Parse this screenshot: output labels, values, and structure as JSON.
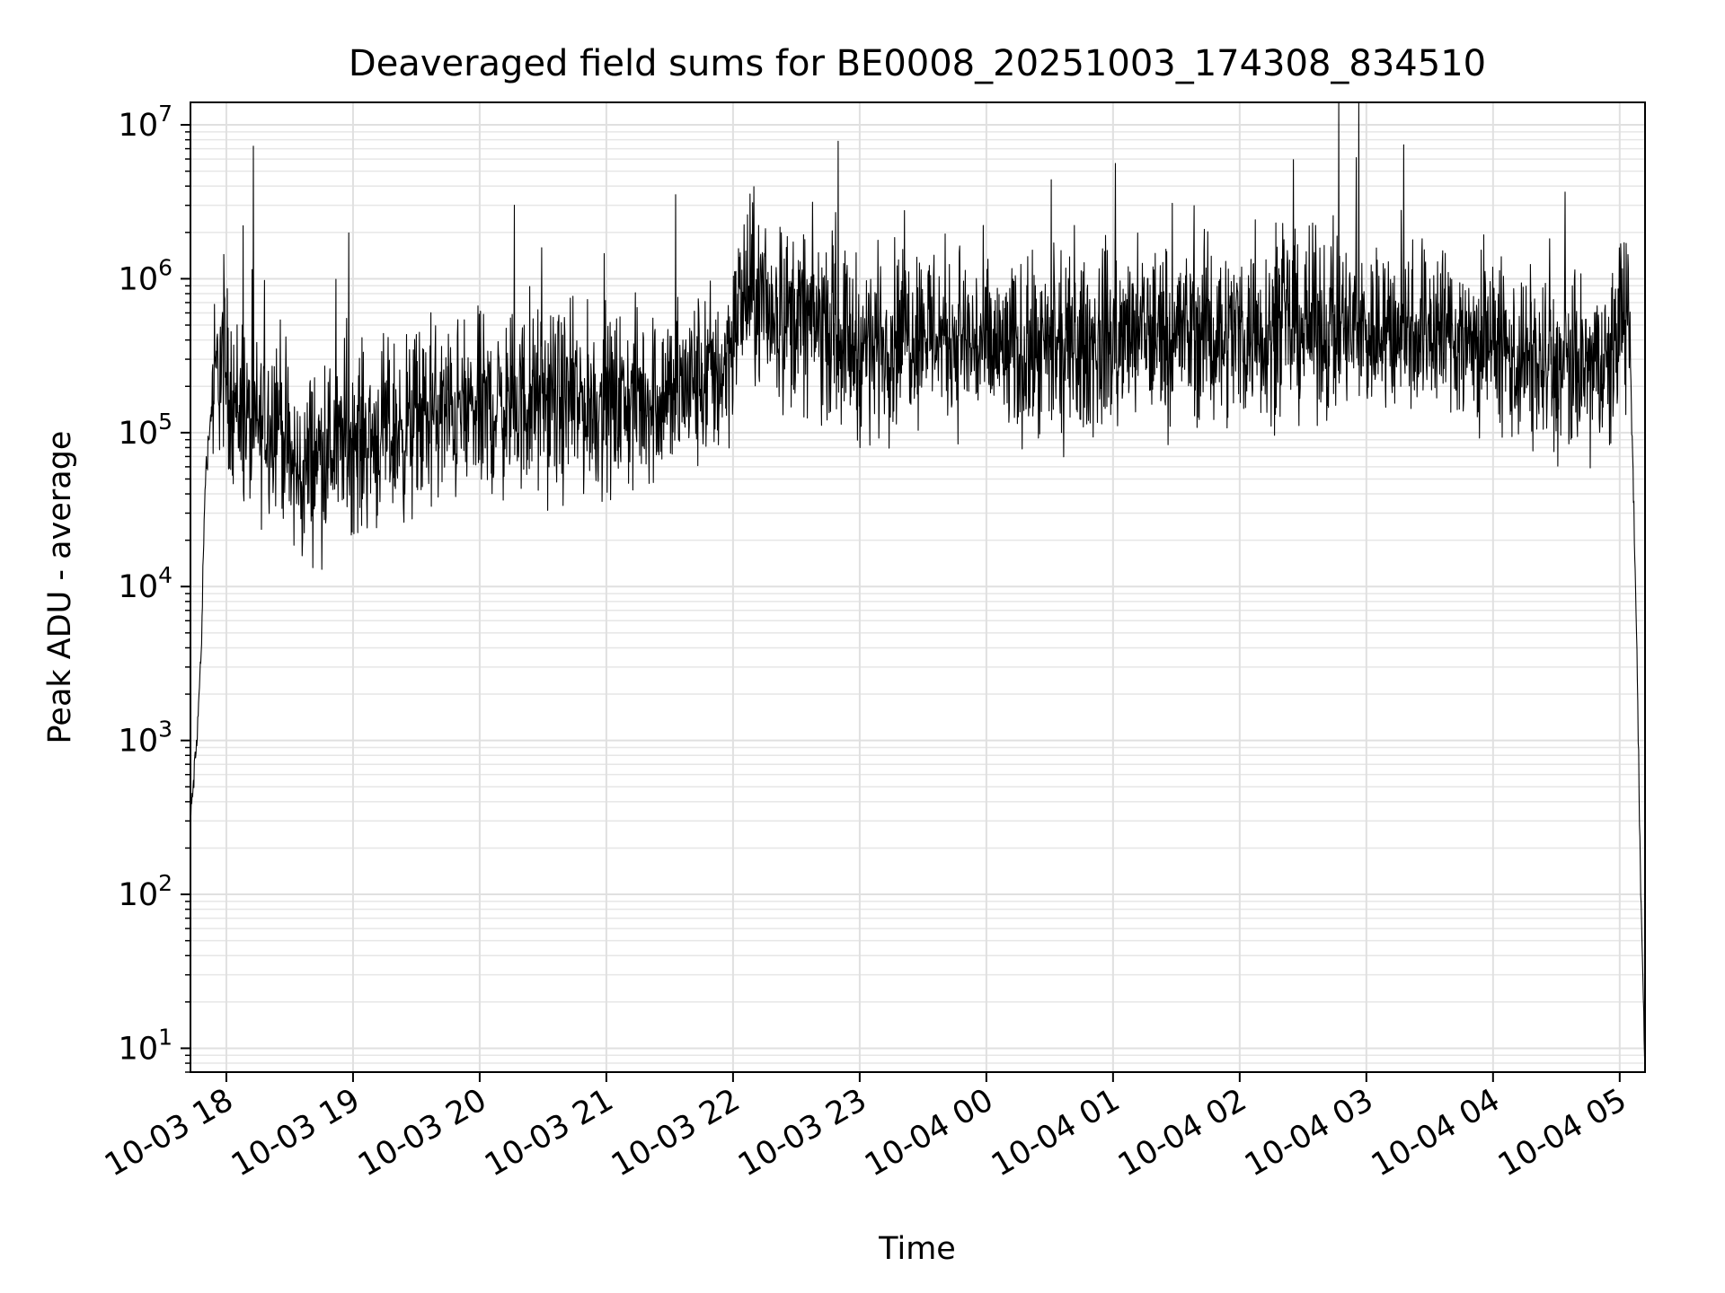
{
  "chart_data": {
    "type": "line",
    "title": "Deaveraged field sums for BE0008_20251003_174308_834510",
    "xlabel": "Time",
    "ylabel": "Peak ADU - average",
    "x_ticks": [
      "10-03 18",
      "10-03 19",
      "10-03 20",
      "10-03 21",
      "10-03 22",
      "10-03 23",
      "10-04 00",
      "10-04 01",
      "10-04 02",
      "10-04 03",
      "10-04 04",
      "10-04 05"
    ],
    "y_ticks": [
      {
        "base": "10",
        "exp": "1"
      },
      {
        "base": "10",
        "exp": "2"
      },
      {
        "base": "10",
        "exp": "3"
      },
      {
        "base": "10",
        "exp": "4"
      },
      {
        "base": "10",
        "exp": "5"
      },
      {
        "base": "10",
        "exp": "6"
      },
      {
        "base": "10",
        "exp": "7"
      }
    ],
    "y_scale": "log",
    "ylim": [
      7,
      14000000
    ],
    "xlim": [
      "2025-10-03 17:43",
      "2025-10-04 05:12"
    ],
    "grid": true,
    "line_color": "#000000",
    "series": [
      {
        "x": [
          "2025-10-03 17:43",
          "2025-10-03 17:46",
          "2025-10-03 17:48",
          "2025-10-03 17:50",
          "2025-10-03 17:53",
          "2025-10-03 17:57",
          "2025-10-03 18:05",
          "2025-10-03 18:12",
          "2025-10-03 18:20",
          "2025-10-03 18:25",
          "2025-10-03 18:30",
          "2025-10-03 18:36",
          "2025-10-03 18:40",
          "2025-10-03 18:50",
          "2025-10-03 19:00",
          "2025-10-03 19:20",
          "2025-10-03 19:40",
          "2025-10-03 20:00",
          "2025-10-03 20:30",
          "2025-10-03 21:00",
          "2025-10-03 21:30",
          "2025-10-03 21:55",
          "2025-10-03 22:05",
          "2025-10-03 22:20",
          "2025-10-03 22:45",
          "2025-10-03 23:00",
          "2025-10-03 23:30",
          "2025-10-04 00:00",
          "2025-10-04 00:30",
          "2025-10-04 01:00",
          "2025-10-04 01:30",
          "2025-10-04 02:00",
          "2025-10-04 02:30",
          "2025-10-04 03:00",
          "2025-10-04 03:30",
          "2025-10-04 04:00",
          "2025-10-04 04:30",
          "2025-10-04 04:55",
          "2025-10-04 05:02",
          "2025-10-04 05:05",
          "2025-10-04 05:08",
          "2025-10-04 05:10",
          "2025-10-04 05:12"
        ],
        "y": [
          300,
          1000,
          3500,
          50000,
          150000,
          300000,
          150000,
          100000,
          120000,
          150000,
          60000,
          50000,
          70000,
          80000,
          90000,
          100000,
          130000,
          140000,
          160000,
          150000,
          180000,
          250000,
          800000,
          600000,
          500000,
          350000,
          500000,
          350000,
          300000,
          400000,
          450000,
          450000,
          500000,
          450000,
          500000,
          350000,
          250000,
          250000,
          800000,
          300000,
          5000,
          100,
          8
        ]
      }
    ]
  }
}
